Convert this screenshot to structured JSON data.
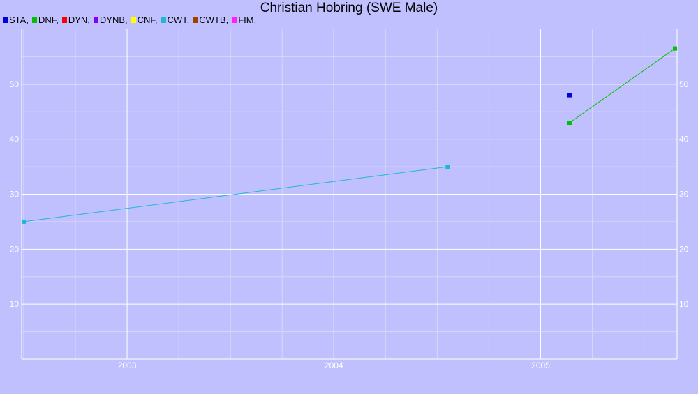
{
  "title": "Christian Hobring (SWE Male)",
  "legend": [
    {
      "label": "STA,",
      "color": "#0000dd"
    },
    {
      "label": "DNF,",
      "color": "#00c000"
    },
    {
      "label": "DYN,",
      "color": "#ff0000"
    },
    {
      "label": "DYNB,",
      "color": "#7f00ff"
    },
    {
      "label": "CNF,",
      "color": "#ffff00"
    },
    {
      "label": "CWT,",
      "color": "#20b8d0"
    },
    {
      "label": "CWTB,",
      "color": "#a04000"
    },
    {
      "label": "FIM,",
      "color": "#ff20ff"
    }
  ],
  "chart_data": {
    "type": "line",
    "title": "Christian Hobring (SWE Male)",
    "xlabel": "",
    "ylabel": "",
    "xlim": [
      2002.49,
      2005.66
    ],
    "ylim": [
      0,
      60
    ],
    "x_ticks": [
      2003,
      2004,
      2005
    ],
    "x_tick_labels": [
      "2003",
      "2004",
      "2005"
    ],
    "y_ticks": [
      10,
      20,
      30,
      40,
      50
    ],
    "y_tick_labels": [
      "10",
      "20",
      "30",
      "40",
      "50"
    ],
    "grid": true,
    "legend_position": "top-left",
    "series": [
      {
        "name": "STA",
        "color": "#0000dd",
        "points": [
          [
            2005.14,
            48
          ]
        ]
      },
      {
        "name": "DNF",
        "color": "#00c000",
        "points": [
          [
            2005.14,
            43
          ],
          [
            2005.65,
            56.5
          ]
        ]
      },
      {
        "name": "CWT",
        "color": "#20b8d0",
        "points": [
          [
            2002.5,
            25
          ],
          [
            2004.55,
            35
          ]
        ]
      }
    ]
  }
}
